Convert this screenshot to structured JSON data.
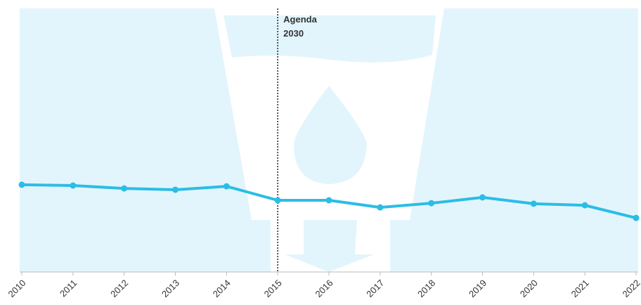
{
  "chart_data": {
    "type": "line",
    "x": [
      "2010",
      "2011",
      "2012",
      "2013",
      "2014",
      "2015",
      "2016",
      "2017",
      "2018",
      "2019",
      "2020",
      "2021",
      "2022"
    ],
    "series": [
      {
        "color": "#2bbde6",
        "values": [
          33.1,
          32.8,
          31.7,
          31.2,
          32.5,
          27.2,
          27.2,
          24.5,
          26.1,
          28.3,
          25.9,
          25.3,
          20.5
        ]
      }
    ],
    "ylim": [
      0,
      100
    ],
    "annotation": {
      "category": "2015",
      "lines": [
        "Agenda",
        "2030"
      ]
    }
  }
}
